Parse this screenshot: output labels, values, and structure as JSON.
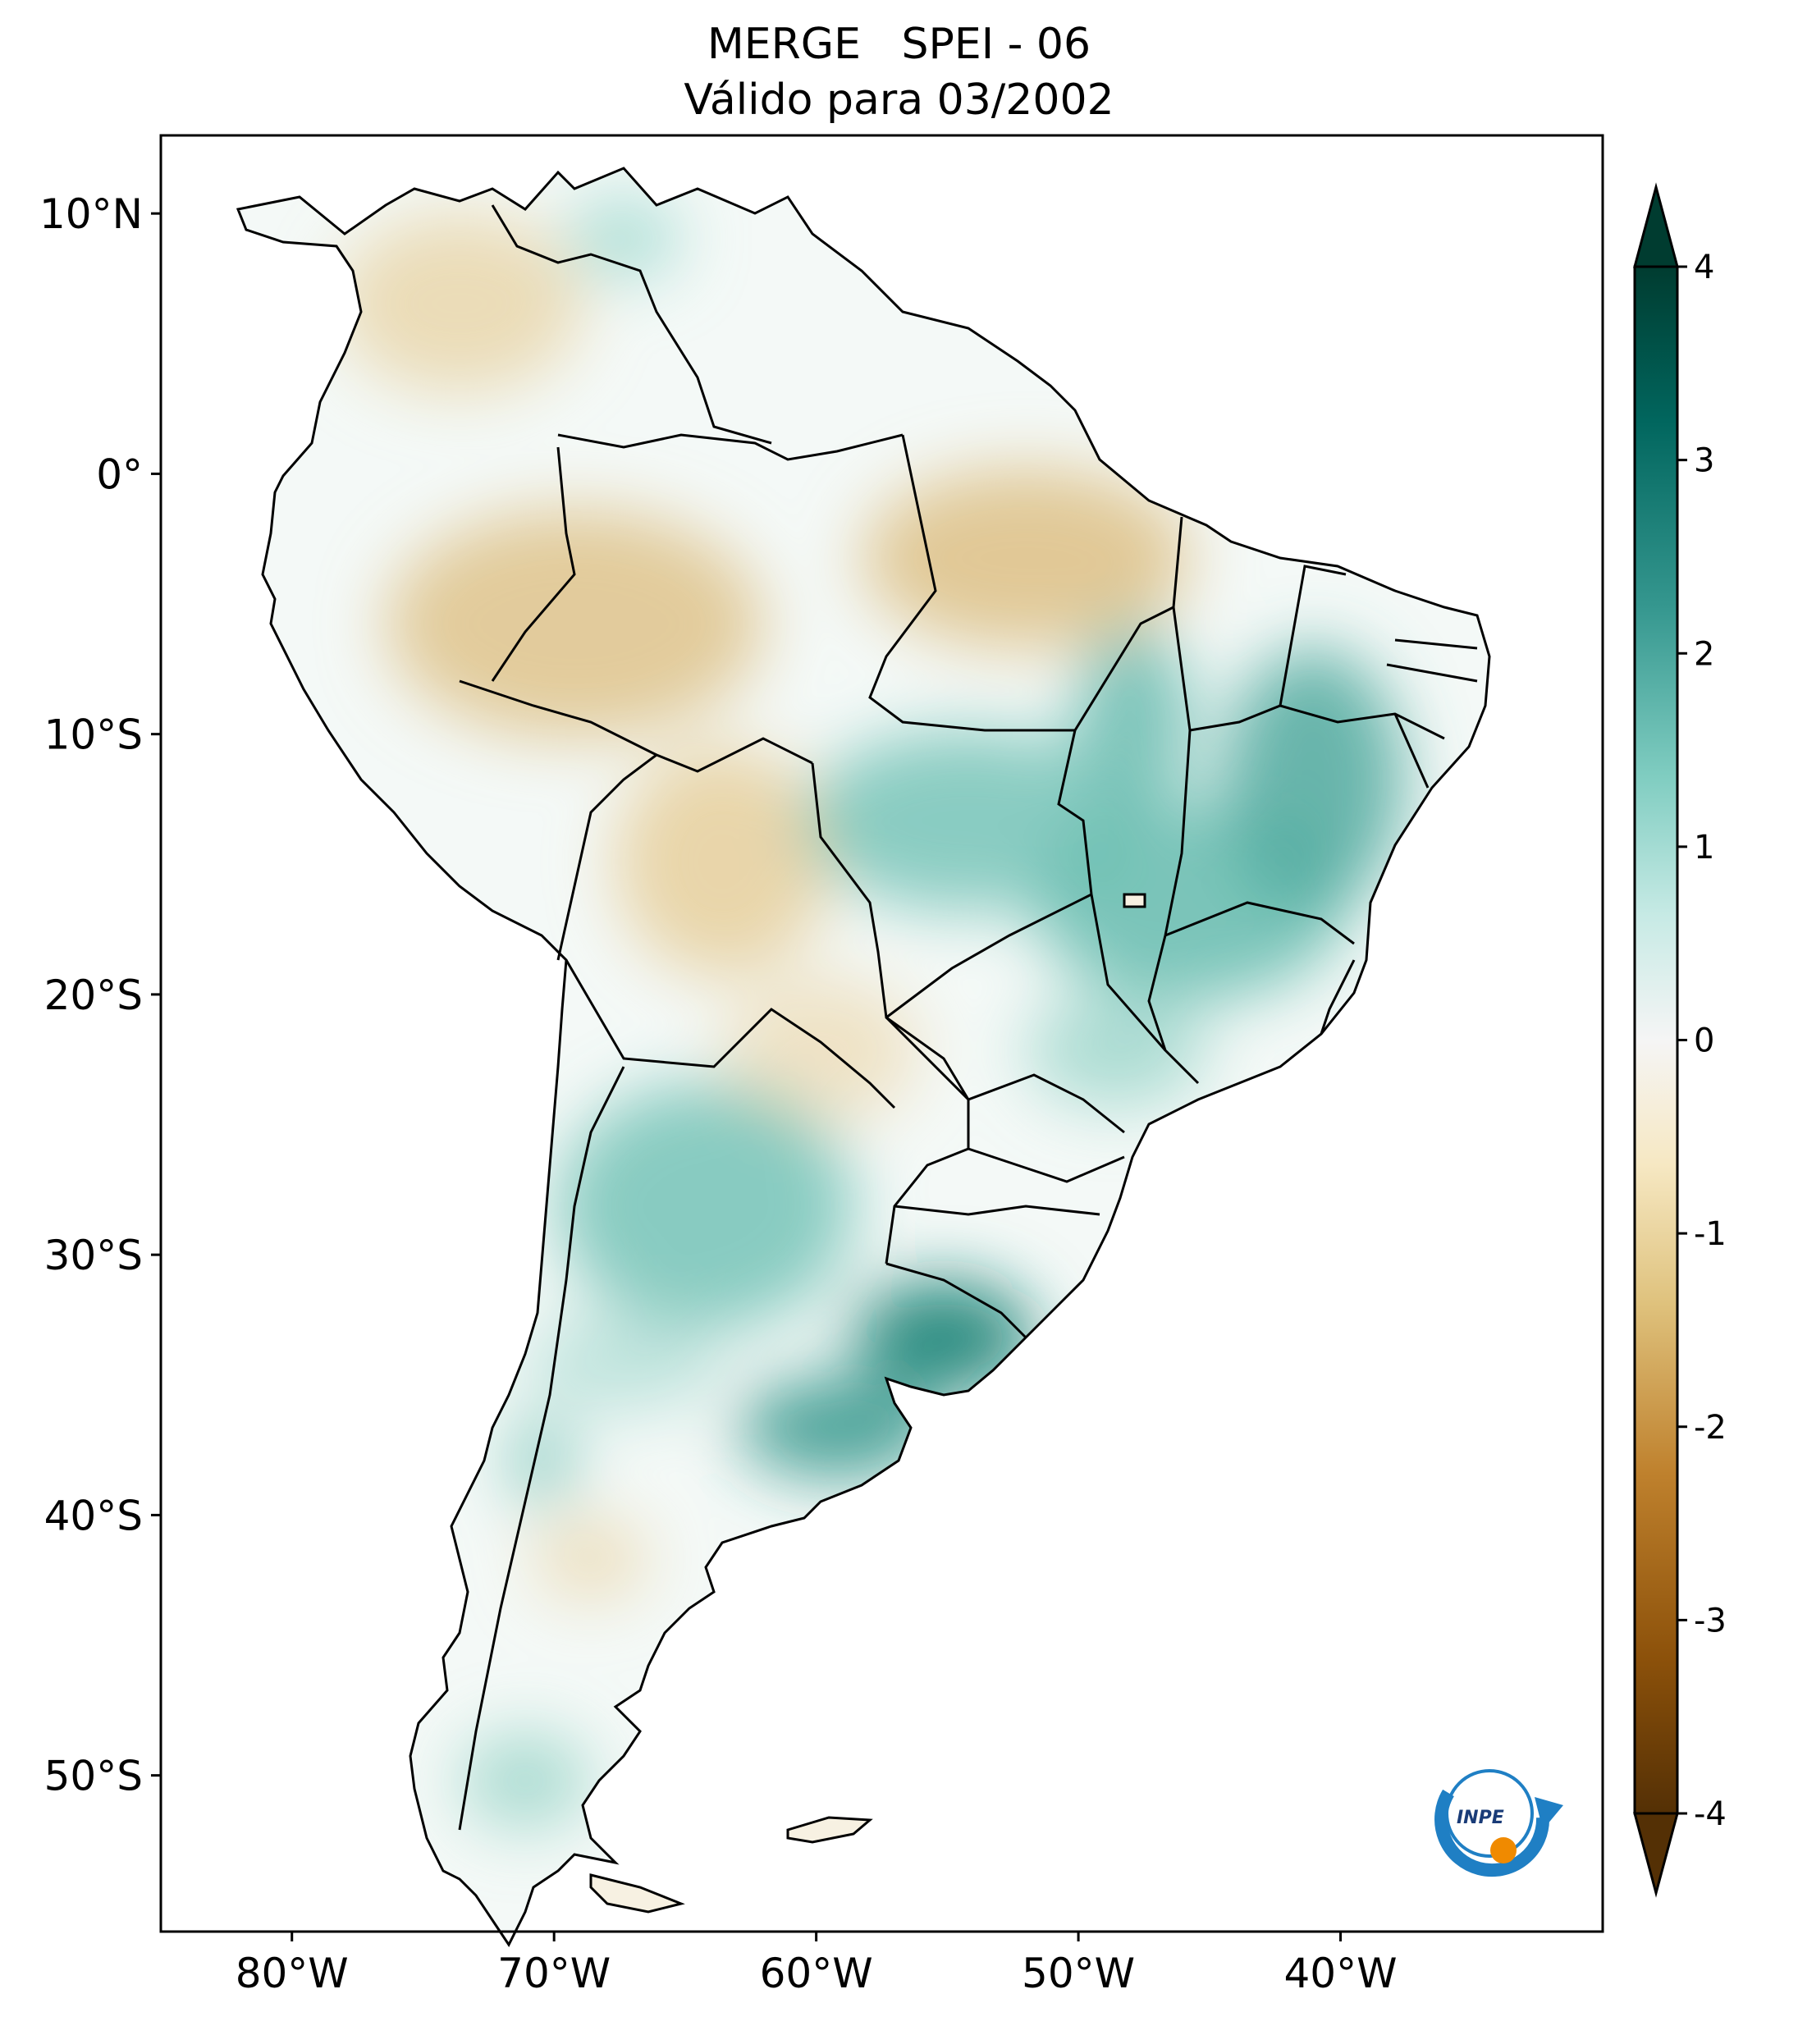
{
  "title": {
    "line1": "MERGE   SPEI - 06",
    "line2": "Válido para 03/2002"
  },
  "map": {
    "lon_range": [
      -85,
      -30
    ],
    "lat_range": [
      -56,
      13
    ],
    "lat_ticks": [
      {
        "value": 10,
        "label": "10°N"
      },
      {
        "value": 0,
        "label": "0°"
      },
      {
        "value": -10,
        "label": "10°S"
      },
      {
        "value": -20,
        "label": "20°S"
      },
      {
        "value": -30,
        "label": "30°S"
      },
      {
        "value": -40,
        "label": "40°S"
      },
      {
        "value": -50,
        "label": "50°S"
      }
    ],
    "lon_ticks": [
      {
        "value": -80,
        "label": "80°W"
      },
      {
        "value": -70,
        "label": "70°W"
      },
      {
        "value": -60,
        "label": "60°W"
      },
      {
        "value": -50,
        "label": "50°W"
      },
      {
        "value": -40,
        "label": "40°W"
      }
    ]
  },
  "colorbar": {
    "range": [
      -4,
      4
    ],
    "extend": "both",
    "colors": [
      "#543005",
      "#8c510a",
      "#bf812d",
      "#dfc27d",
      "#f6e8c3",
      "#ffffff",
      "#c7eae5",
      "#80cdc1",
      "#35978f",
      "#01665e",
      "#003c30"
    ],
    "ticks": [
      {
        "value": 4,
        "label": "4"
      },
      {
        "value": 3,
        "label": "3"
      },
      {
        "value": 2,
        "label": "2"
      },
      {
        "value": 1,
        "label": "1"
      },
      {
        "value": 0,
        "label": "0"
      },
      {
        "value": -1,
        "label": "-1"
      },
      {
        "value": -2,
        "label": "-2"
      },
      {
        "value": -3,
        "label": "-3"
      },
      {
        "value": -4,
        "label": "-4"
      }
    ]
  },
  "logo": {
    "text": "INPE"
  }
}
